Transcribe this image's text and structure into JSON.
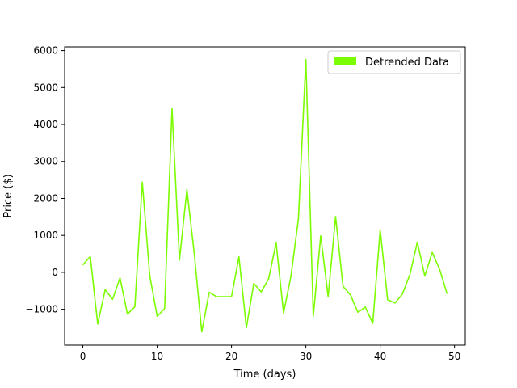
{
  "chart_data": {
    "type": "line",
    "xlabel": "Time (days)",
    "ylabel": "Price ($)",
    "xlim": [
      -2.45,
      51.45
    ],
    "ylim": [
      -1970,
      6100
    ],
    "x_ticks": [
      0,
      10,
      20,
      30,
      40,
      50
    ],
    "y_ticks": [
      -1000,
      0,
      1000,
      2000,
      3000,
      4000,
      5000,
      6000
    ],
    "grid": false,
    "legend": "top-right",
    "series": [
      {
        "name": "Detrended Data",
        "color": "#7cfc00",
        "x": [
          0,
          1,
          2,
          3,
          4,
          5,
          6,
          7,
          8,
          9,
          10,
          11,
          12,
          13,
          14,
          15,
          16,
          17,
          18,
          19,
          20,
          21,
          22,
          23,
          24,
          25,
          26,
          27,
          28,
          29,
          30,
          31,
          32,
          33,
          34,
          35,
          36,
          37,
          38,
          39,
          40,
          41,
          42,
          43,
          44,
          45,
          46,
          47,
          48,
          49
        ],
        "values": [
          200,
          430,
          -1400,
          -470,
          -730,
          -150,
          -1130,
          -930,
          2440,
          -90,
          -1190,
          -980,
          4430,
          330,
          2240,
          490,
          -1610,
          -540,
          -660,
          -660,
          -660,
          420,
          -1500,
          -300,
          -530,
          -170,
          800,
          -1100,
          -100,
          1450,
          5760,
          -1190,
          990,
          -660,
          1510,
          -380,
          -610,
          -1080,
          -940,
          -1380,
          1150,
          -740,
          -830,
          -580,
          -60,
          820,
          -100,
          540,
          80,
          -580
        ]
      }
    ]
  }
}
